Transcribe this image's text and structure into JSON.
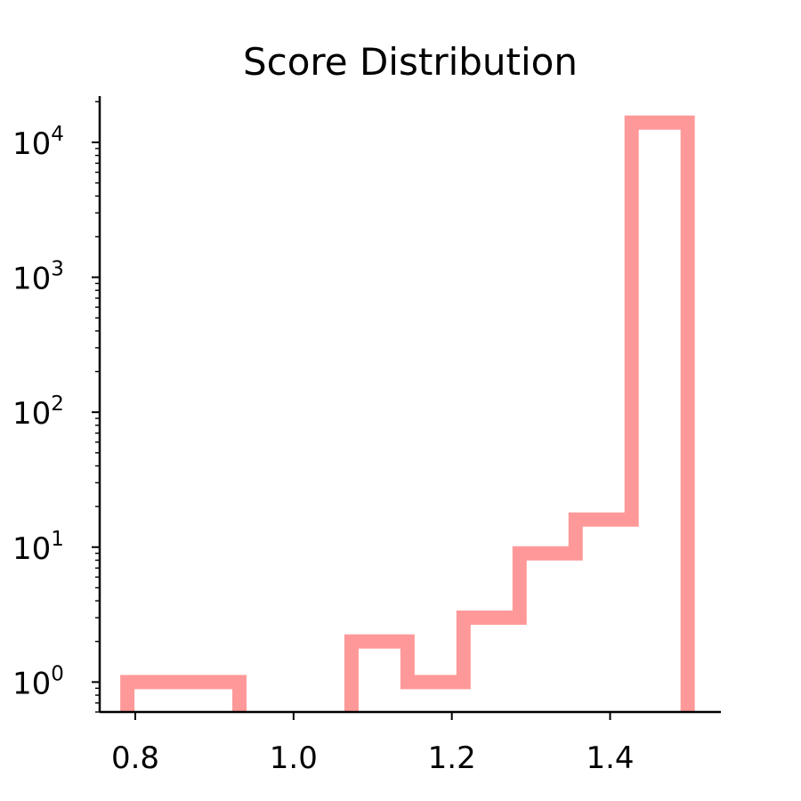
{
  "chart_data": {
    "type": "histogram",
    "title": "Score Distribution",
    "xlabel": "",
    "ylabel": "",
    "y_scale": "log",
    "histtype": "step",
    "bin_edges": [
      0.79,
      0.8608,
      0.9316,
      1.0024,
      1.0732,
      1.144,
      1.2148,
      1.2856,
      1.3564,
      1.4272,
      1.498
    ],
    "counts": [
      1,
      1,
      0,
      0,
      2,
      1,
      3,
      9,
      16,
      14000
    ],
    "xlim": [
      0.755,
      1.54
    ],
    "ylim": [
      0.6,
      22000
    ],
    "x_ticks": [
      {
        "value": 0.8,
        "label": "0.8"
      },
      {
        "value": 1.0,
        "label": "1.0"
      },
      {
        "value": 1.2,
        "label": "1.2"
      },
      {
        "value": 1.4,
        "label": "1.4"
      }
    ],
    "y_ticks": [
      {
        "value": 1,
        "base": "10",
        "exp": "0"
      },
      {
        "value": 10,
        "base": "10",
        "exp": "1"
      },
      {
        "value": 100,
        "base": "10",
        "exp": "2"
      },
      {
        "value": 1000,
        "base": "10",
        "exp": "3"
      },
      {
        "value": 10000,
        "base": "10",
        "exp": "4"
      }
    ],
    "color": "#ff9999",
    "grid": false,
    "legend": "none",
    "spines": "left-bottom"
  }
}
